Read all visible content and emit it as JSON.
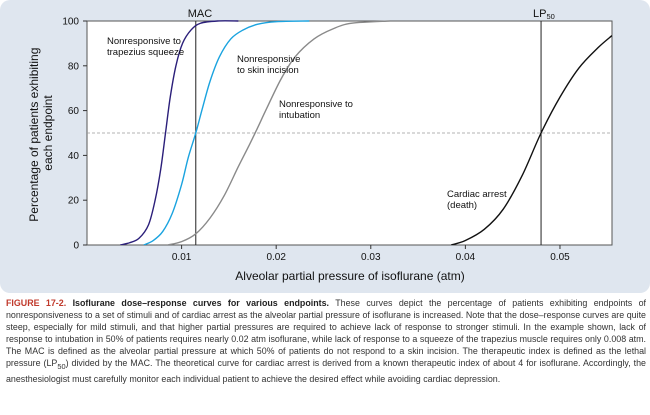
{
  "chart_data": {
    "type": "line",
    "title": "",
    "xlabel": "Alveolar partial pressure of isoflurane (atm)",
    "ylabel_lines": [
      "Percentage of patients exhibiting",
      "each endpoint"
    ],
    "xlim": [
      0,
      0.0555
    ],
    "ylim": [
      0,
      100
    ],
    "xticks": [
      0.01,
      0.02,
      0.03,
      0.04,
      0.05
    ],
    "xtick_labels": [
      "0.01",
      "0.02",
      "0.03",
      "0.04",
      "0.05"
    ],
    "yticks": [
      0,
      20,
      40,
      60,
      80,
      100
    ],
    "ytick_labels": [
      "0",
      "20",
      "40",
      "60",
      "80",
      "100"
    ],
    "reference_line_y": 50,
    "vlines": [
      {
        "name": "MAC",
        "x": 0.0115,
        "label": "MAC"
      },
      {
        "name": "LP50",
        "x": 0.048,
        "label": "LP",
        "label_sub": "50"
      }
    ],
    "series": [
      {
        "name": "trapezius",
        "label_lines": [
          "Nonresponsive to",
          "trapezius squeeze"
        ],
        "color": "#2b1f7a",
        "points": [
          [
            0.0035,
            0
          ],
          [
            0.0045,
            1
          ],
          [
            0.0055,
            3
          ],
          [
            0.0065,
            9
          ],
          [
            0.0072,
            20
          ],
          [
            0.0078,
            34
          ],
          [
            0.0083,
            50
          ],
          [
            0.0088,
            66
          ],
          [
            0.0094,
            80
          ],
          [
            0.0101,
            90
          ],
          [
            0.011,
            96
          ],
          [
            0.012,
            99
          ],
          [
            0.0138,
            100
          ],
          [
            0.016,
            100
          ]
        ]
      },
      {
        "name": "skin-incision",
        "label_lines": [
          "Nonresponsive",
          "to skin incision"
        ],
        "color": "#1aa3df",
        "points": [
          [
            0.006,
            0
          ],
          [
            0.007,
            2
          ],
          [
            0.008,
            6
          ],
          [
            0.009,
            14
          ],
          [
            0.01,
            27
          ],
          [
            0.0107,
            39
          ],
          [
            0.0115,
            50
          ],
          [
            0.0122,
            61
          ],
          [
            0.013,
            73
          ],
          [
            0.014,
            84
          ],
          [
            0.0152,
            92
          ],
          [
            0.0165,
            96
          ],
          [
            0.018,
            98.5
          ],
          [
            0.02,
            99.7
          ],
          [
            0.0235,
            100
          ]
        ]
      },
      {
        "name": "intubation",
        "label_lines": [
          "Nonresponsive to",
          "intubation"
        ],
        "color": "#8a8a8a",
        "points": [
          [
            0.0085,
            0
          ],
          [
            0.01,
            1.5
          ],
          [
            0.0115,
            5
          ],
          [
            0.013,
            12
          ],
          [
            0.0145,
            22
          ],
          [
            0.016,
            35
          ],
          [
            0.0172,
            45
          ],
          [
            0.018,
            52
          ],
          [
            0.019,
            61
          ],
          [
            0.0205,
            74
          ],
          [
            0.022,
            84
          ],
          [
            0.024,
            92
          ],
          [
            0.026,
            96.5
          ],
          [
            0.028,
            99
          ],
          [
            0.032,
            100
          ]
        ]
      },
      {
        "name": "cardiac-arrest",
        "label_lines": [
          "Cardiac arrest",
          "(death)"
        ],
        "color": "#111111",
        "points": [
          [
            0.0385,
            0
          ],
          [
            0.04,
            2
          ],
          [
            0.042,
            7
          ],
          [
            0.044,
            16
          ],
          [
            0.046,
            31
          ],
          [
            0.048,
            50
          ],
          [
            0.05,
            66
          ],
          [
            0.052,
            79
          ],
          [
            0.054,
            88
          ],
          [
            0.0555,
            93.5
          ]
        ]
      }
    ]
  },
  "caption": {
    "figure_label": "FIGURE 17-2.",
    "figure_title": "Isoflurane dose–response curves for various endpoints.",
    "body_before_sub": "These curves depict the percentage of patients exhibiting endpoints of nonresponsiveness to a set of stimuli and of cardiac arrest as the alveolar partial pressure of isoflurane is increased. Note that the dose–response curves are quite steep, especially for mild stimuli, and that higher partial pressures are required to achieve lack of response to stronger stimuli. In the example shown, lack of response to intubation in 50% of patients requires nearly 0.02 atm isoflurane, while lack of response to a squeeze of the trapezius muscle requires only 0.008 atm. The MAC is defined as the alveolar partial pressure at which 50% of patients do not respond to a skin incision. The therapeutic index is defined as the lethal pressure (LP",
    "sub": "50",
    "body_after_sub": ") divided by the MAC. The theoretical curve for cardiac arrest is derived from a known therapeutic index of about 4 for isoflurane. Accordingly, the anesthesiologist must carefully monitor each individual patient to achieve the desired effect while avoiding cardiac depression."
  }
}
